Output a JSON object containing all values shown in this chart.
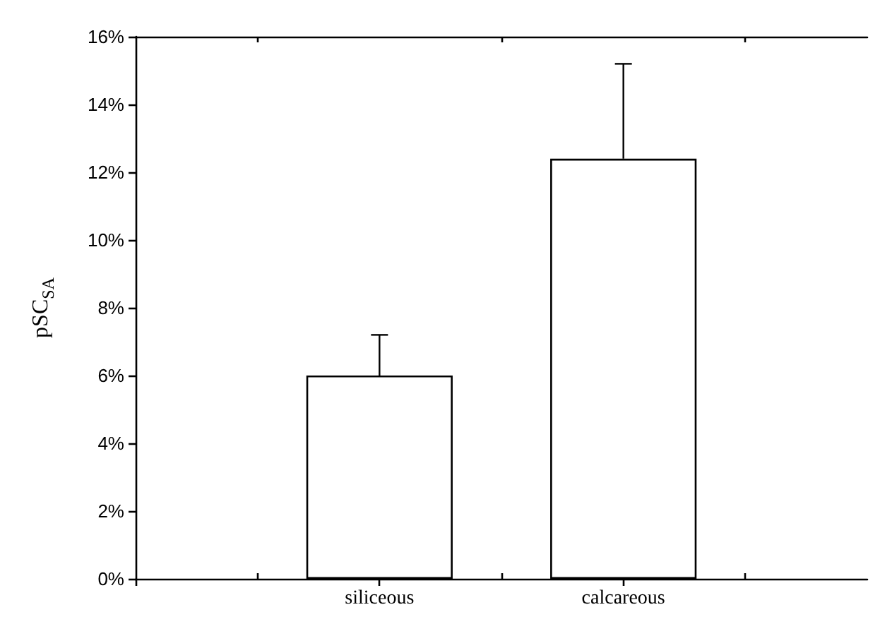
{
  "chart_data": {
    "type": "bar",
    "ylabel": "pSC$_{SA}$",
    "categories": [
      "siliceous",
      "calcareous"
    ],
    "values": [
      6.0,
      12.4
    ],
    "errors": [
      [
        6.0,
        7.2
      ],
      [
        12.4,
        15.2
      ]
    ],
    "color": "#ffffff",
    "ylim": [
      0,
      16
    ],
    "yticks": [
      {
        "value": 0,
        "label": "0%"
      },
      {
        "value": 2,
        "label": "2%"
      },
      {
        "value": 4,
        "label": "4%"
      },
      {
        "value": 6,
        "label": "6%"
      },
      {
        "value": 8,
        "label": "8%"
      },
      {
        "value": 10,
        "label": "10%"
      },
      {
        "value": 12,
        "label": "12%"
      },
      {
        "value": 14,
        "label": "14%"
      },
      {
        "value": 16,
        "label": "16%"
      }
    ],
    "grid": false
  }
}
